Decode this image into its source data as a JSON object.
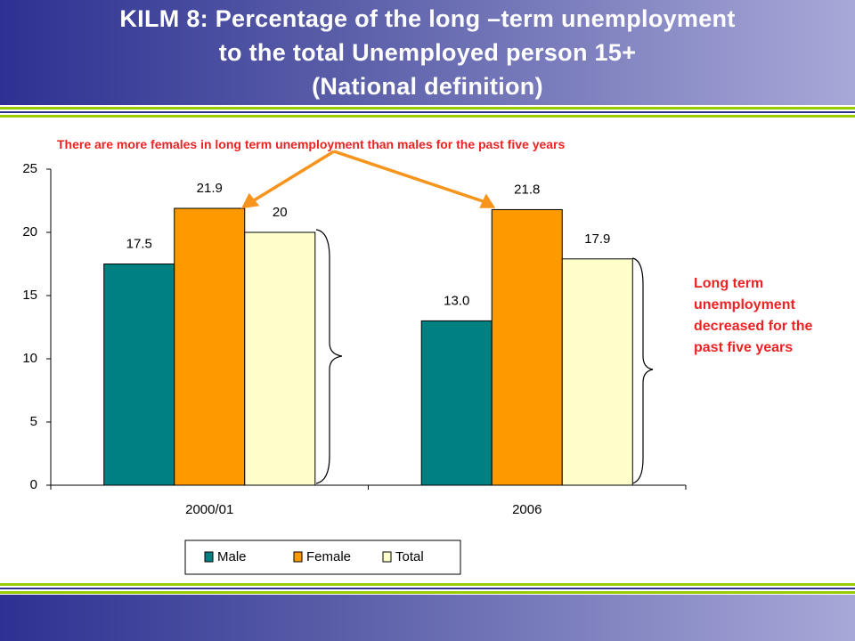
{
  "chart_data": {
    "type": "bar",
    "title": "KILM 8: Percentage of the long –term unemployment\nto the total Unemployed person 15+\n(National definition)",
    "categories": [
      "2000/01",
      "2006"
    ],
    "series": [
      {
        "name": "Male",
        "color": "#008080",
        "values": [
          17.5,
          13.0
        ],
        "value_labels": [
          "17.5",
          "13.0"
        ]
      },
      {
        "name": "Female",
        "color": "#ff9900",
        "values": [
          21.9,
          21.8
        ]
      },
      {
        "name": "Total",
        "color": "#ffffcc",
        "values": [
          20,
          17.9
        ]
      }
    ],
    "ylim": [
      0,
      25
    ],
    "yticks": [
      0,
      5,
      10,
      15,
      20,
      25
    ],
    "grid": false,
    "legend": "bottom",
    "annotations": [
      "There are more females in long term unemployment than males for the past five years",
      "Long term unemployment decreased for the past five years"
    ]
  }
}
